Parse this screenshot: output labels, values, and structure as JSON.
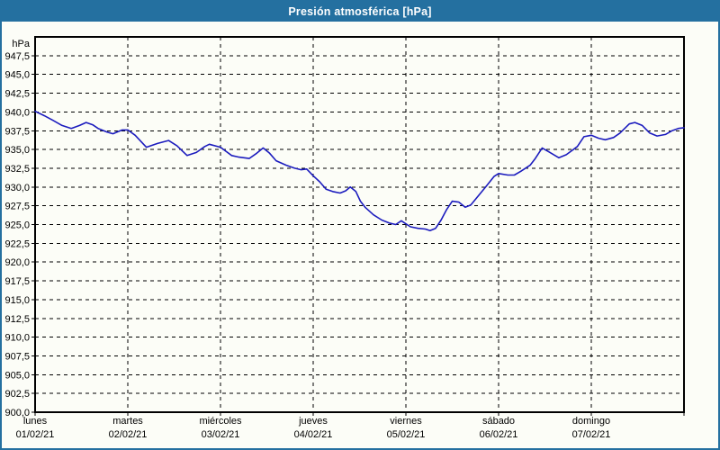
{
  "window": {
    "title": "Presión atmosférica [hPa]"
  },
  "colors": {
    "accent": "#2470a0",
    "titlebar_text": "#ffffff",
    "background": "#fcfdf7",
    "plot_frame": "#000000",
    "gridline": "#000000",
    "text": "#000000",
    "line": "#1c1cbe"
  },
  "chart_data": {
    "type": "line",
    "title": "Presión atmosférica [hPa]",
    "y_unit_label": "hPa",
    "ylim": [
      900,
      950
    ],
    "y_tick_step": 2.5,
    "y_ticks": [
      947.5,
      945.0,
      942.5,
      940.0,
      937.5,
      935.0,
      932.5,
      930.0,
      927.5,
      925.0,
      922.5,
      920.0,
      917.5,
      915.0,
      912.5,
      910.0,
      907.5,
      905.0,
      902.5,
      900.0
    ],
    "decimal_separator": ",",
    "xlim_days": [
      0,
      7
    ],
    "x_days": [
      {
        "name": "lunes",
        "date": "01/02/21"
      },
      {
        "name": "martes",
        "date": "02/02/21"
      },
      {
        "name": "miércoles",
        "date": "03/02/21"
      },
      {
        "name": "jueves",
        "date": "04/02/21"
      },
      {
        "name": "viernes",
        "date": "05/02/21"
      },
      {
        "name": "sábado",
        "date": "06/02/21"
      },
      {
        "name": "domingo",
        "date": "07/02/21"
      }
    ],
    "grid": "dashed",
    "legend": "none",
    "series": [
      {
        "name": "Presión atmosférica",
        "unit": "hPa",
        "points": [
          [
            0.0,
            940.1
          ],
          [
            0.1,
            939.5
          ],
          [
            0.19,
            938.9
          ],
          [
            0.29,
            938.2
          ],
          [
            0.39,
            937.8
          ],
          [
            0.48,
            938.2
          ],
          [
            0.55,
            938.6
          ],
          [
            0.62,
            938.3
          ],
          [
            0.68,
            937.8
          ],
          [
            0.78,
            937.3
          ],
          [
            0.84,
            937.1
          ],
          [
            0.94,
            937.6
          ],
          [
            1.0,
            937.6
          ],
          [
            1.08,
            936.9
          ],
          [
            1.2,
            935.3
          ],
          [
            1.32,
            935.8
          ],
          [
            1.44,
            936.2
          ],
          [
            1.53,
            935.5
          ],
          [
            1.64,
            934.2
          ],
          [
            1.74,
            934.6
          ],
          [
            1.83,
            935.4
          ],
          [
            1.88,
            935.7
          ],
          [
            2.0,
            935.3
          ],
          [
            2.12,
            934.2
          ],
          [
            2.19,
            934.0
          ],
          [
            2.31,
            933.8
          ],
          [
            2.39,
            934.5
          ],
          [
            2.46,
            935.2
          ],
          [
            2.53,
            934.5
          ],
          [
            2.6,
            933.5
          ],
          [
            2.71,
            932.9
          ],
          [
            2.8,
            932.5
          ],
          [
            2.87,
            932.3
          ],
          [
            2.93,
            932.4
          ],
          [
            3.0,
            931.5
          ],
          [
            3.07,
            930.7
          ],
          [
            3.14,
            929.7
          ],
          [
            3.21,
            929.4
          ],
          [
            3.29,
            929.2
          ],
          [
            3.35,
            929.5
          ],
          [
            3.4,
            930.0
          ],
          [
            3.46,
            929.4
          ],
          [
            3.51,
            928.1
          ],
          [
            3.56,
            927.3
          ],
          [
            3.65,
            926.3
          ],
          [
            3.74,
            925.6
          ],
          [
            3.82,
            925.2
          ],
          [
            3.89,
            925.0
          ],
          [
            3.95,
            925.5
          ],
          [
            4.0,
            925.1
          ],
          [
            4.05,
            924.7
          ],
          [
            4.13,
            924.5
          ],
          [
            4.21,
            924.4
          ],
          [
            4.26,
            924.2
          ],
          [
            4.32,
            924.5
          ],
          [
            4.38,
            925.6
          ],
          [
            4.44,
            927.0
          ],
          [
            4.5,
            928.1
          ],
          [
            4.57,
            928.0
          ],
          [
            4.64,
            927.3
          ],
          [
            4.7,
            927.6
          ],
          [
            4.76,
            928.5
          ],
          [
            4.86,
            930.0
          ],
          [
            4.95,
            931.4
          ],
          [
            5.0,
            931.8
          ],
          [
            5.1,
            931.6
          ],
          [
            5.17,
            931.6
          ],
          [
            5.24,
            932.1
          ],
          [
            5.34,
            932.9
          ],
          [
            5.39,
            933.7
          ],
          [
            5.47,
            935.2
          ],
          [
            5.54,
            934.7
          ],
          [
            5.65,
            933.9
          ],
          [
            5.73,
            934.3
          ],
          [
            5.85,
            935.4
          ],
          [
            5.92,
            936.7
          ],
          [
            6.0,
            936.9
          ],
          [
            6.08,
            936.5
          ],
          [
            6.15,
            936.3
          ],
          [
            6.24,
            936.6
          ],
          [
            6.31,
            937.2
          ],
          [
            6.41,
            938.4
          ],
          [
            6.47,
            938.6
          ],
          [
            6.55,
            938.2
          ],
          [
            6.63,
            937.2
          ],
          [
            6.71,
            936.8
          ],
          [
            6.8,
            937.0
          ],
          [
            6.87,
            937.5
          ],
          [
            6.94,
            937.8
          ],
          [
            7.0,
            937.9
          ]
        ]
      }
    ]
  }
}
